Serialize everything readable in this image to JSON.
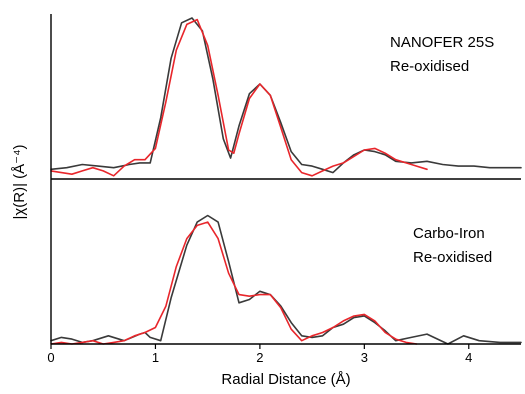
{
  "chart_data": {
    "type": "line",
    "xlabel": "Radial Distance (Å)",
    "ylabel": "|χ(R)| (Å⁻⁴)",
    "xlim": [
      0,
      4.5
    ],
    "x_ticks": [
      "0",
      "1",
      "2",
      "3",
      "4"
    ],
    "legend": "none",
    "grid": false,
    "series_colors": [
      "#3a3a3a",
      "#e8262b"
    ],
    "panels": [
      {
        "label_lines": [
          "NANOFER 25S",
          "Re-oxidised"
        ],
        "ylim": [
          0,
          1.0
        ],
        "series": [
          {
            "x": [
              0.0,
              0.15,
              0.3,
              0.45,
              0.6,
              0.75,
              0.85,
              0.95,
              1.05,
              1.15,
              1.25,
              1.35,
              1.45,
              1.55,
              1.65,
              1.72,
              1.8,
              1.9,
              2.0,
              2.1,
              2.2,
              2.3,
              2.4,
              2.5,
              2.6,
              2.7,
              2.8,
              2.9,
              3.0,
              3.1,
              3.2,
              3.3,
              3.45,
              3.6,
              3.75,
              3.9,
              4.05,
              4.2,
              4.35,
              4.5
            ],
            "y": [
              0.06,
              0.07,
              0.09,
              0.08,
              0.07,
              0.09,
              0.1,
              0.1,
              0.38,
              0.75,
              0.97,
              1.0,
              0.92,
              0.62,
              0.25,
              0.13,
              0.33,
              0.53,
              0.59,
              0.52,
              0.35,
              0.17,
              0.09,
              0.08,
              0.06,
              0.04,
              0.1,
              0.15,
              0.18,
              0.17,
              0.15,
              0.11,
              0.1,
              0.11,
              0.09,
              0.08,
              0.08,
              0.07,
              0.07,
              0.07
            ]
          },
          {
            "x": [
              0.0,
              0.1,
              0.2,
              0.3,
              0.4,
              0.5,
              0.6,
              0.7,
              0.8,
              0.9,
              1.0,
              1.1,
              1.2,
              1.3,
              1.4,
              1.5,
              1.6,
              1.7,
              1.75,
              1.8,
              1.9,
              2.0,
              2.1,
              2.2,
              2.3,
              2.4,
              2.5,
              2.6,
              2.7,
              2.8,
              2.9,
              3.0,
              3.1,
              3.2,
              3.3,
              3.4,
              3.5,
              3.6
            ],
            "y": [
              0.05,
              0.04,
              0.03,
              0.05,
              0.07,
              0.05,
              0.02,
              0.08,
              0.12,
              0.12,
              0.19,
              0.48,
              0.8,
              0.96,
              0.99,
              0.83,
              0.52,
              0.18,
              0.16,
              0.28,
              0.5,
              0.59,
              0.52,
              0.32,
              0.12,
              0.04,
              0.02,
              0.05,
              0.08,
              0.1,
              0.14,
              0.18,
              0.19,
              0.16,
              0.12,
              0.1,
              0.08,
              0.06
            ]
          }
        ]
      },
      {
        "label_lines": [
          "Carbo-Iron",
          "Re-oxidised"
        ],
        "ylim": [
          0,
          0.85
        ],
        "series": [
          {
            "x": [
              0.0,
              0.1,
              0.2,
              0.3,
              0.4,
              0.55,
              0.7,
              0.85,
              0.9,
              0.95,
              1.05,
              1.15,
              1.3,
              1.4,
              1.5,
              1.6,
              1.7,
              1.8,
              1.9,
              2.0,
              2.1,
              2.2,
              2.3,
              2.4,
              2.5,
              2.6,
              2.7,
              2.8,
              2.9,
              3.0,
              3.1,
              3.2,
              3.3,
              3.45,
              3.6,
              3.8,
              3.95,
              4.1,
              4.3,
              4.5
            ],
            "y": [
              0.02,
              0.04,
              0.03,
              0.01,
              0.02,
              0.05,
              0.02,
              0.06,
              0.07,
              0.04,
              0.02,
              0.28,
              0.6,
              0.74,
              0.78,
              0.74,
              0.5,
              0.25,
              0.27,
              0.32,
              0.3,
              0.23,
              0.13,
              0.05,
              0.04,
              0.05,
              0.1,
              0.12,
              0.16,
              0.17,
              0.13,
              0.08,
              0.02,
              0.04,
              0.06,
              0.0,
              0.05,
              0.02,
              0.01,
              0.01
            ]
          },
          {
            "x": [
              0.0,
              0.1,
              0.2,
              0.3,
              0.4,
              0.5,
              0.6,
              0.7,
              0.8,
              0.9,
              1.0,
              1.1,
              1.2,
              1.3,
              1.4,
              1.5,
              1.6,
              1.7,
              1.8,
              1.9,
              2.0,
              2.1,
              2.2,
              2.3,
              2.4,
              2.5,
              2.6,
              2.7,
              2.8,
              2.9,
              3.0,
              3.1,
              3.2,
              3.3,
              3.4,
              3.5
            ],
            "y": [
              0.0,
              0.01,
              0.0,
              0.01,
              0.02,
              0.0,
              0.01,
              0.02,
              0.05,
              0.07,
              0.1,
              0.23,
              0.47,
              0.64,
              0.72,
              0.74,
              0.64,
              0.43,
              0.3,
              0.29,
              0.3,
              0.3,
              0.22,
              0.09,
              0.02,
              0.05,
              0.07,
              0.1,
              0.14,
              0.17,
              0.18,
              0.14,
              0.07,
              0.03,
              0.01,
              0.0
            ]
          }
        ]
      }
    ]
  }
}
